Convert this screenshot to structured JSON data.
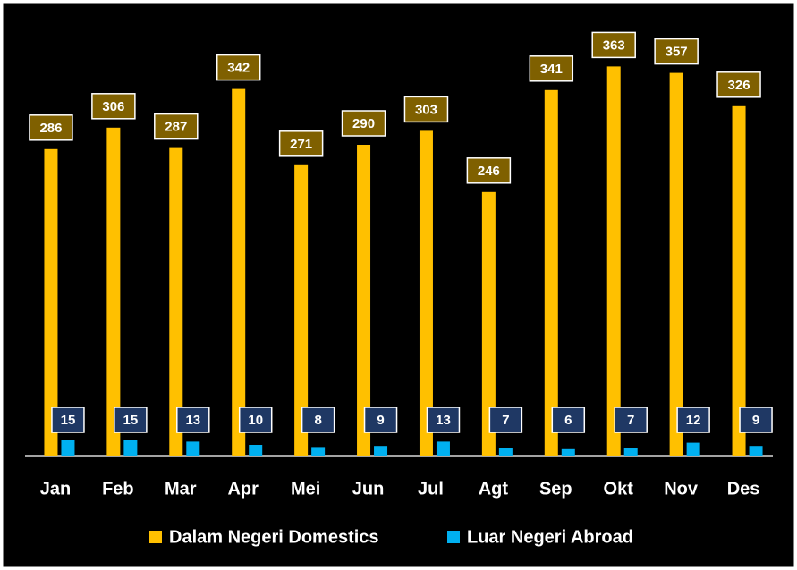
{
  "chart_data": {
    "type": "bar",
    "categories": [
      "Jan",
      "Feb",
      "Mar",
      "Apr",
      "Mei",
      "Jun",
      "Jul",
      "Agt",
      "Sep",
      "Okt",
      "Nov",
      "Des"
    ],
    "series": [
      {
        "name": "Dalam Negeri Domestics",
        "color": "#ffc000",
        "values": [
          286,
          306,
          287,
          342,
          271,
          290,
          303,
          246,
          341,
          363,
          357,
          326
        ]
      },
      {
        "name": "Luar Negeri Abroad",
        "color": "#00b0f0",
        "values": [
          15,
          15,
          13,
          10,
          8,
          9,
          13,
          7,
          6,
          7,
          12,
          9
        ]
      }
    ],
    "ylim": [
      0,
      400
    ]
  }
}
